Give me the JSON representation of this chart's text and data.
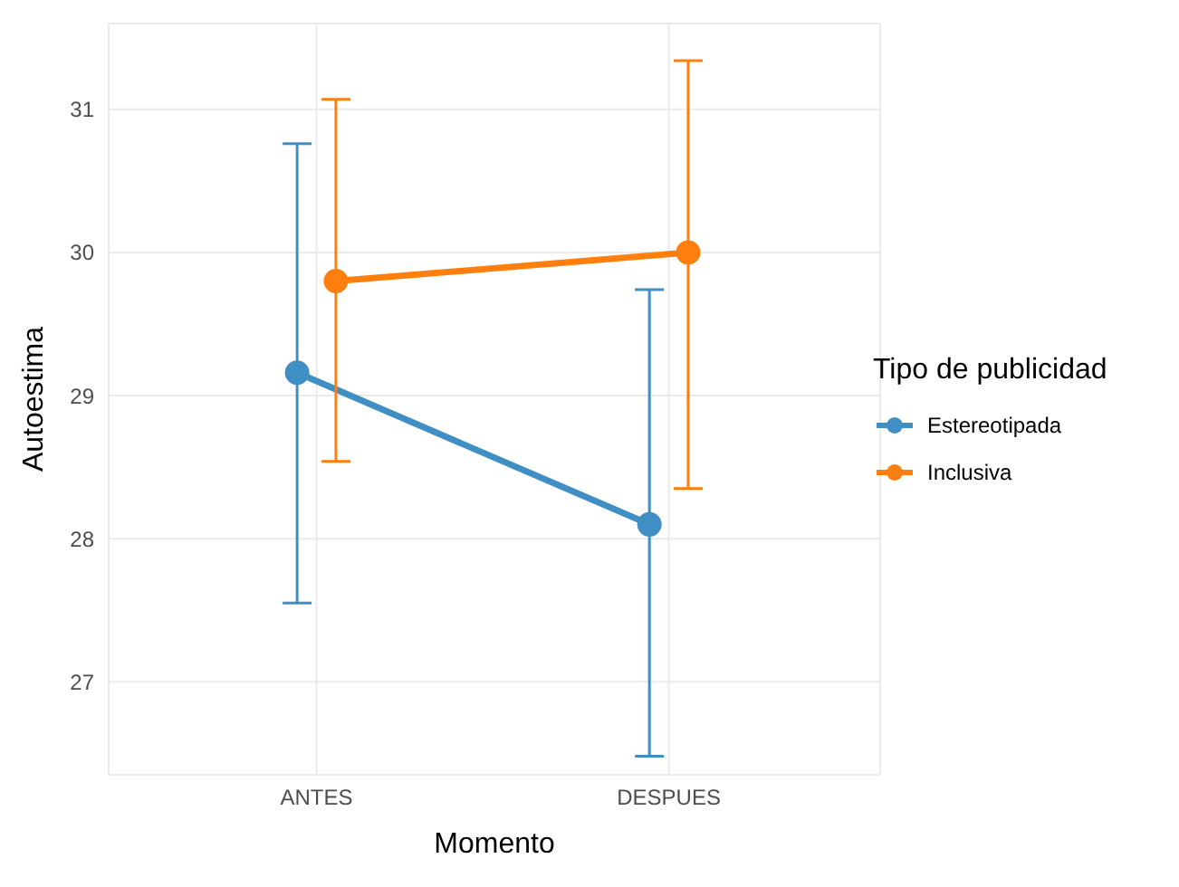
{
  "chart_data": {
    "type": "line",
    "xlabel": "Momento",
    "ylabel": "Autoestima",
    "legend_title": "Tipo de publicidad",
    "categories": [
      "ANTES",
      "DESPUES"
    ],
    "series": [
      {
        "name": "Estereotipada",
        "color": "#3f8fc4",
        "values": [
          29.16,
          28.1
        ],
        "errors": [
          [
            27.55,
            30.76
          ],
          [
            26.48,
            29.74
          ]
        ]
      },
      {
        "name": "Inclusiva",
        "color": "#ff7f0e",
        "values": [
          29.8,
          30.0
        ],
        "errors": [
          [
            28.54,
            31.07
          ],
          [
            28.35,
            31.34
          ]
        ]
      }
    ],
    "ylim": [
      26.35,
      31.6
    ],
    "yticks": [
      27,
      28,
      29,
      30,
      31
    ],
    "grid": true,
    "legend": "right",
    "marker": "circle",
    "line_style": "solid"
  }
}
